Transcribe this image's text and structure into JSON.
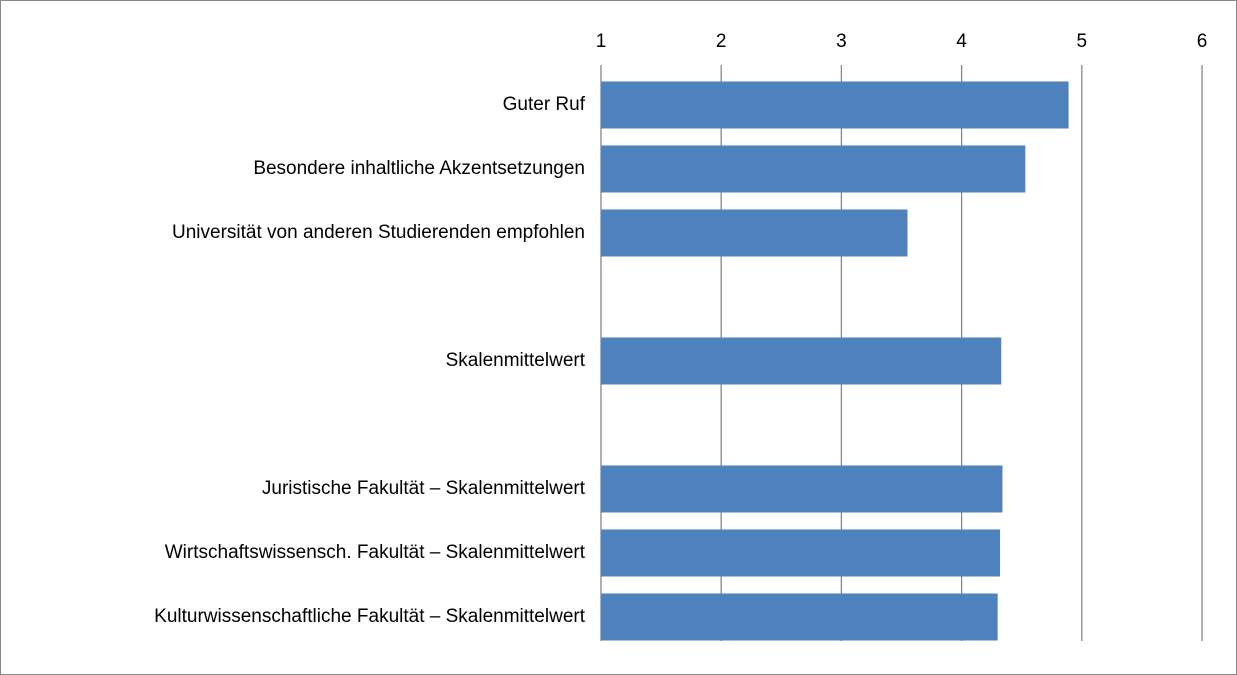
{
  "chart_data": {
    "type": "bar",
    "orientation": "horizontal",
    "categories": [
      "Guter Ruf",
      "Besondere inhaltliche Akzentsetzungen",
      "Universität von anderen Studierenden empfohlen",
      null,
      "Skalenmittelwert",
      null,
      "Juristische Fakultät – Skalenmittelwert",
      "Wirtschaftswissensch. Fakultät – Skalenmittelwert",
      "Kulturwissenschaftliche Fakultät – Skalenmittelwert"
    ],
    "values": [
      4.89,
      4.53,
      3.55,
      null,
      4.33,
      null,
      4.34,
      4.32,
      4.3
    ],
    "color": "#4f81bd",
    "xlim": [
      1,
      6
    ],
    "xticks": [
      1,
      2,
      3,
      4,
      5,
      6
    ],
    "grid": true
  }
}
